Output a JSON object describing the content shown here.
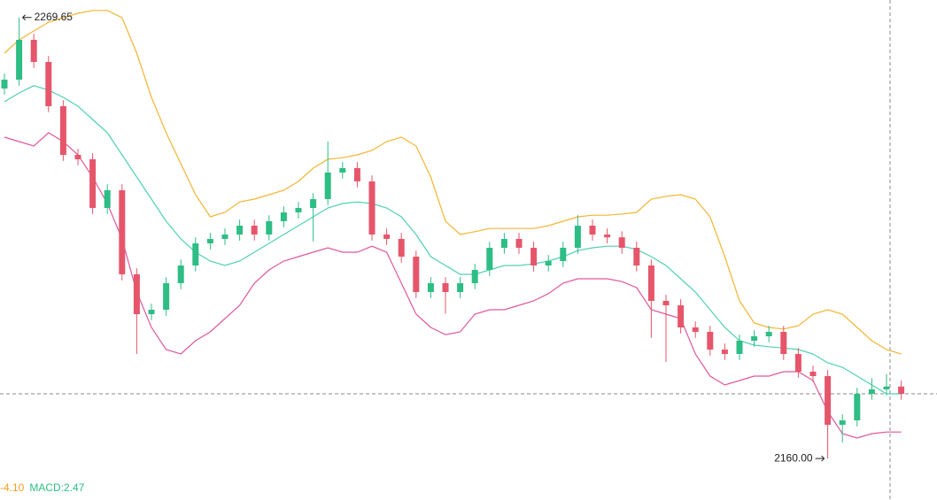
{
  "chart_data": {
    "type": "candlestick",
    "ylim": [
      2149.7,
      2274
    ],
    "up_color": "#2ebd85",
    "down_color": "#e6566b",
    "open": [
      2252.0,
      2254.2,
      2264.1,
      2258.6,
      2247.6,
      2235.5,
      2234.4,
      2222.3,
      2226.7,
      2205.8,
      2195.9,
      2197.0,
      2203.6,
      2208.0,
      2213.5,
      2214.6,
      2215.7,
      2217.9,
      2215.7,
      2219.0,
      2221.2,
      2222.3,
      2224.5,
      2231.1,
      2232.2,
      2228.9,
      2215.7,
      2214.6,
      2210.2,
      2201.4,
      2203.6,
      2201.4,
      2203.6,
      2206.9,
      2212.4,
      2214.6,
      2212.4,
      2208.0,
      2209.1,
      2212.4,
      2217.9,
      2215.7,
      2215.0,
      2212.4,
      2208.0,
      2199.2,
      2198.1,
      2192.6,
      2191.5,
      2187.1,
      2186.0,
      2189.3,
      2190.4,
      2191.5,
      2186.0,
      2181.6,
      2180.5,
      2168.4,
      2169.5,
      2176.1,
      2177.2,
      2177.9
    ],
    "high": [
      2255.7,
      2269.65,
      2265.6,
      2260.1,
      2249.1,
      2237.0,
      2235.9,
      2228.2,
      2228.2,
      2207.3,
      2198.5,
      2205.1,
      2209.5,
      2215.0,
      2216.1,
      2217.2,
      2219.4,
      2219.4,
      2220.5,
      2222.7,
      2223.8,
      2226.0,
      2238.8,
      2233.7,
      2233.7,
      2230.4,
      2217.2,
      2216.1,
      2211.7,
      2205.1,
      2205.1,
      2205.1,
      2208.4,
      2213.9,
      2216.1,
      2216.1,
      2213.9,
      2210.6,
      2213.9,
      2220.5,
      2219.4,
      2217.2,
      2216.5,
      2213.9,
      2209.5,
      2200.7,
      2199.6,
      2194.1,
      2193.0,
      2188.6,
      2190.8,
      2191.9,
      2193.0,
      2193.0,
      2187.5,
      2183.1,
      2182.0,
      2171.0,
      2177.6,
      2180.0,
      2181.0,
      2179.4
    ],
    "low": [
      2250.5,
      2252.7,
      2257.1,
      2246.1,
      2234.0,
      2232.9,
      2220.8,
      2220.8,
      2204.3,
      2186.0,
      2194.4,
      2195.5,
      2202.1,
      2206.5,
      2212.0,
      2213.1,
      2214.2,
      2214.2,
      2214.2,
      2217.5,
      2219.7,
      2214.0,
      2223.0,
      2229.6,
      2227.4,
      2214.2,
      2213.1,
      2208.7,
      2199.9,
      2199.9,
      2196.0,
      2199.9,
      2202.1,
      2205.4,
      2210.9,
      2210.9,
      2206.5,
      2206.5,
      2207.6,
      2210.9,
      2214.2,
      2213.5,
      2210.9,
      2206.5,
      2190.0,
      2184.0,
      2191.1,
      2190.0,
      2185.6,
      2184.5,
      2184.5,
      2187.8,
      2188.9,
      2184.5,
      2180.1,
      2179.0,
      2160.0,
      2164.0,
      2168.0,
      2174.6,
      2175.7,
      2174.6
    ],
    "close": [
      2254.2,
      2264.1,
      2258.6,
      2247.6,
      2235.5,
      2234.4,
      2222.3,
      2226.7,
      2205.8,
      2195.9,
      2197.0,
      2203.6,
      2208.0,
      2213.5,
      2214.6,
      2215.7,
      2217.9,
      2215.7,
      2219.0,
      2221.2,
      2222.3,
      2224.5,
      2231.1,
      2232.2,
      2228.9,
      2215.7,
      2214.6,
      2210.2,
      2201.4,
      2203.6,
      2201.4,
      2203.6,
      2206.9,
      2212.4,
      2214.6,
      2212.4,
      2208.0,
      2209.1,
      2212.4,
      2217.9,
      2215.7,
      2215.0,
      2212.4,
      2208.0,
      2199.2,
      2198.1,
      2192.6,
      2191.5,
      2187.1,
      2186.0,
      2189.3,
      2190.4,
      2191.5,
      2186.0,
      2181.6,
      2180.5,
      2168.4,
      2169.5,
      2176.1,
      2177.2,
      2177.9,
      2176.1
    ],
    "overlays": [
      {
        "color": "#f2b632",
        "values": [
          2260.8,
          2264.1,
          2266.3,
          2268.5,
          2269.6,
          2270.7,
          2271.4,
          2271.4,
          2269.6,
          2260.8,
          2249.8,
          2241.0,
          2233.3,
          2225.6,
          2220.1,
          2221.2,
          2223.8,
          2224.5,
          2225.6,
          2226.7,
          2228.9,
          2232.2,
          2234.4,
          2234.8,
          2235.5,
          2236.6,
          2238.8,
          2239.9,
          2237.7,
          2230.0,
          2219.0,
          2215.7,
          2216.4,
          2217.2,
          2217.2,
          2217.2,
          2217.2,
          2217.9,
          2219.0,
          2220.1,
          2220.5,
          2220.5,
          2220.8,
          2221.2,
          2224.5,
          2225.2,
          2225.6,
          2224.5,
          2220.1,
          2210.2,
          2199.2,
          2193.7,
          2192.6,
          2192.2,
          2193.0,
          2195.9,
          2197.0,
          2195.9,
          2192.6,
          2189.3,
          2187.1,
          2186.0
        ]
      },
      {
        "color": "#4fd1b5",
        "values": [
          2248.7,
          2250.9,
          2252.7,
          2251.6,
          2249.8,
          2247.6,
          2244.3,
          2241.0,
          2235.5,
          2230.0,
          2224.5,
          2219.0,
          2214.6,
          2211.3,
          2209.1,
          2208.0,
          2209.1,
          2211.3,
          2213.5,
          2215.7,
          2217.9,
          2220.1,
          2222.3,
          2223.4,
          2223.8,
          2223.4,
          2222.3,
          2220.1,
          2215.7,
          2210.2,
          2208.0,
          2205.8,
          2205.8,
          2206.9,
          2208.0,
          2208.0,
          2208.4,
          2209.1,
          2210.2,
          2211.7,
          2212.4,
          2212.8,
          2212.8,
          2212.0,
          2210.2,
          2208.0,
          2204.7,
          2201.4,
          2197.0,
          2192.6,
          2189.3,
          2188.2,
          2187.8,
          2187.5,
          2187.1,
          2186.0,
          2183.8,
          2182.7,
          2180.5,
          2178.3,
          2176.1,
          2176.1
        ]
      },
      {
        "color": "#e0579e",
        "values": [
          2239.9,
          2238.8,
          2237.7,
          2241.0,
          2238.8,
          2235.5,
          2230.0,
          2223.4,
          2214.6,
          2201.4,
          2192.6,
          2187.1,
          2186.0,
          2189.3,
          2191.5,
          2194.8,
          2198.1,
          2203.6,
          2206.9,
          2209.1,
          2210.2,
          2211.3,
          2212.4,
          2211.3,
          2211.3,
          2212.8,
          2211.3,
          2203.6,
          2195.9,
          2192.6,
          2190.8,
          2191.5,
          2195.9,
          2197.0,
          2197.0,
          2198.1,
          2199.2,
          2201.0,
          2203.6,
          2204.7,
          2204.7,
          2204.7,
          2204.0,
          2202.5,
          2197.0,
          2195.9,
          2194.8,
          2186.0,
          2180.5,
          2178.3,
          2179.4,
          2180.5,
          2180.5,
          2181.6,
          2181.6,
          2179.4,
          2171.7,
          2166.2,
          2165.1,
          2166.2,
          2166.6,
          2166.6
        ]
      }
    ],
    "high_label": "2269.65",
    "low_label": "2160.00",
    "indicators": [
      {
        "text": "-4.10",
        "color": "#f0a020"
      },
      {
        "text": "MACD:2.47",
        "color": "#2ebd85"
      }
    ]
  }
}
